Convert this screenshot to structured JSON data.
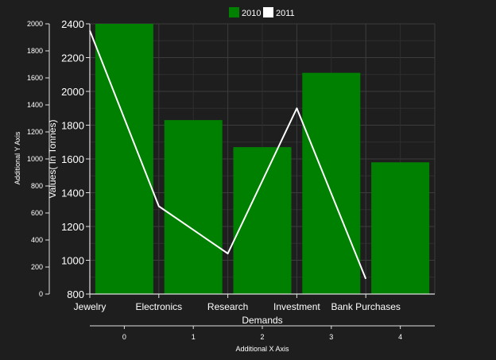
{
  "chart_data": {
    "type": "bar",
    "categories": [
      "Jewelry",
      "Electronics",
      "Research",
      "Investment",
      "Bank Purchases"
    ],
    "series": [
      {
        "name": "2010",
        "type": "bar",
        "values": [
          2400,
          1830,
          1670,
          2110,
          1580
        ]
      },
      {
        "name": "2011",
        "type": "line",
        "values": [
          2360,
          1320,
          1040,
          1900,
          890
        ]
      }
    ],
    "xlabel": "Demands",
    "ylabel": "Values( In Tonnes)",
    "ylim": [
      800,
      2400
    ],
    "yticks": [
      800,
      1000,
      1200,
      1400,
      1600,
      1800,
      2000,
      2200,
      2400
    ],
    "secondary_y": {
      "label": "Additional Y Axis",
      "ylim": [
        0,
        2000
      ],
      "ticks": [
        0,
        200,
        400,
        600,
        800,
        1000,
        1200,
        1400,
        1600,
        1800,
        2000
      ]
    },
    "secondary_x": {
      "label": "Additional X Axis",
      "ticks": [
        "0",
        "1",
        "2",
        "3",
        "4"
      ]
    },
    "grid": true,
    "legend_position": "top-center",
    "colors": {
      "2010": "#008000",
      "2011": "#ffffff",
      "background": "#1e1e1e",
      "gridline": "#3c3c3c",
      "axis": "#e0e0e0",
      "text": "#ffffff"
    }
  }
}
